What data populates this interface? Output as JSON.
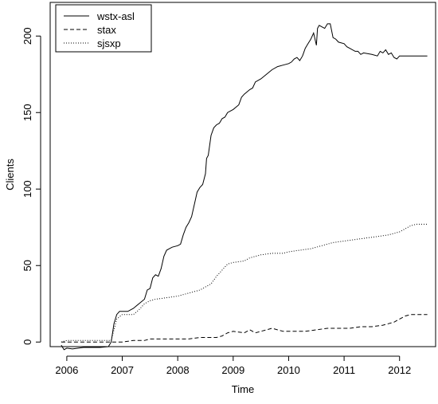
{
  "chart_data": {
    "type": "line",
    "title": "",
    "xlabel": "Time",
    "ylabel": "Clients",
    "xlim": [
      2005.7,
      2012.65
    ],
    "ylim": [
      -3,
      222
    ],
    "x_ticks": [
      2006,
      2007,
      2008,
      2009,
      2010,
      2011,
      2012
    ],
    "y_ticks": [
      0,
      50,
      100,
      150,
      200
    ],
    "grid": false,
    "legend_position": "top-left",
    "series": [
      {
        "name": "wstx-asl",
        "dash": "solid",
        "points": [
          [
            2005.9,
            -2
          ],
          [
            2005.95,
            -5
          ],
          [
            2006.0,
            -4
          ],
          [
            2006.1,
            -4.5
          ],
          [
            2006.3,
            -3.5
          ],
          [
            2006.6,
            -3.5
          ],
          [
            2006.75,
            -3
          ],
          [
            2006.8,
            0
          ],
          [
            2006.85,
            12
          ],
          [
            2006.9,
            18
          ],
          [
            2006.95,
            20
          ],
          [
            2007.1,
            20
          ],
          [
            2007.2,
            22
          ],
          [
            2007.3,
            25
          ],
          [
            2007.4,
            28
          ],
          [
            2007.45,
            34
          ],
          [
            2007.5,
            35
          ],
          [
            2007.55,
            42
          ],
          [
            2007.6,
            44
          ],
          [
            2007.65,
            43
          ],
          [
            2007.7,
            48
          ],
          [
            2007.75,
            56
          ],
          [
            2007.8,
            60
          ],
          [
            2007.85,
            61
          ],
          [
            2007.9,
            62
          ],
          [
            2008.0,
            63
          ],
          [
            2008.05,
            64
          ],
          [
            2008.1,
            70
          ],
          [
            2008.15,
            75
          ],
          [
            2008.2,
            78
          ],
          [
            2008.25,
            82
          ],
          [
            2008.3,
            90
          ],
          [
            2008.35,
            98
          ],
          [
            2008.4,
            101
          ],
          [
            2008.45,
            103
          ],
          [
            2008.5,
            110
          ],
          [
            2008.52,
            120
          ],
          [
            2008.55,
            122
          ],
          [
            2008.6,
            135
          ],
          [
            2008.65,
            140
          ],
          [
            2008.7,
            142
          ],
          [
            2008.75,
            143
          ],
          [
            2008.8,
            146
          ],
          [
            2008.85,
            147
          ],
          [
            2008.9,
            150
          ],
          [
            2008.95,
            151
          ],
          [
            2009.0,
            152
          ],
          [
            2009.1,
            155
          ],
          [
            2009.15,
            160
          ],
          [
            2009.2,
            162
          ],
          [
            2009.3,
            165
          ],
          [
            2009.35,
            166
          ],
          [
            2009.4,
            170
          ],
          [
            2009.5,
            172
          ],
          [
            2009.6,
            175
          ],
          [
            2009.7,
            178
          ],
          [
            2009.8,
            180
          ],
          [
            2009.9,
            181
          ],
          [
            2010.0,
            182
          ],
          [
            2010.05,
            183
          ],
          [
            2010.1,
            185
          ],
          [
            2010.15,
            186
          ],
          [
            2010.2,
            184
          ],
          [
            2010.25,
            187
          ],
          [
            2010.3,
            192
          ],
          [
            2010.35,
            195
          ],
          [
            2010.4,
            198
          ],
          [
            2010.45,
            202
          ],
          [
            2010.5,
            194
          ],
          [
            2010.52,
            205
          ],
          [
            2010.55,
            207
          ],
          [
            2010.6,
            206
          ],
          [
            2010.65,
            205
          ],
          [
            2010.7,
            208
          ],
          [
            2010.75,
            208
          ],
          [
            2010.8,
            199
          ],
          [
            2010.85,
            198
          ],
          [
            2010.9,
            196
          ],
          [
            2011.0,
            195
          ],
          [
            2011.05,
            193
          ],
          [
            2011.1,
            192
          ],
          [
            2011.2,
            190
          ],
          [
            2011.25,
            190
          ],
          [
            2011.3,
            188
          ],
          [
            2011.35,
            189
          ],
          [
            2011.5,
            188
          ],
          [
            2011.6,
            187
          ],
          [
            2011.65,
            190
          ],
          [
            2011.7,
            189
          ],
          [
            2011.75,
            191
          ],
          [
            2011.8,
            188
          ],
          [
            2011.85,
            189
          ],
          [
            2011.9,
            186
          ],
          [
            2011.95,
            185
          ],
          [
            2012.0,
            187
          ],
          [
            2012.1,
            187
          ],
          [
            2012.3,
            187
          ],
          [
            2012.5,
            187
          ]
        ]
      },
      {
        "name": "stax",
        "dash": "dashed",
        "points": [
          [
            2005.9,
            0
          ],
          [
            2006.0,
            0
          ],
          [
            2006.5,
            0
          ],
          [
            2006.8,
            0
          ],
          [
            2006.9,
            0
          ],
          [
            2007.0,
            0
          ],
          [
            2007.2,
            1
          ],
          [
            2007.4,
            1
          ],
          [
            2007.5,
            2
          ],
          [
            2007.8,
            2
          ],
          [
            2008.0,
            2
          ],
          [
            2008.2,
            2
          ],
          [
            2008.4,
            3
          ],
          [
            2008.7,
            3
          ],
          [
            2008.8,
            4
          ],
          [
            2008.9,
            6
          ],
          [
            2009.0,
            7
          ],
          [
            2009.2,
            6
          ],
          [
            2009.3,
            8
          ],
          [
            2009.4,
            6
          ],
          [
            2009.6,
            8
          ],
          [
            2009.7,
            9
          ],
          [
            2009.9,
            7
          ],
          [
            2010.0,
            7
          ],
          [
            2010.2,
            7
          ],
          [
            2010.3,
            7
          ],
          [
            2010.5,
            8
          ],
          [
            2010.7,
            9
          ],
          [
            2010.9,
            9
          ],
          [
            2011.1,
            9
          ],
          [
            2011.3,
            10
          ],
          [
            2011.5,
            10
          ],
          [
            2011.7,
            11
          ],
          [
            2011.8,
            12
          ],
          [
            2011.9,
            13
          ],
          [
            2012.0,
            15
          ],
          [
            2012.1,
            17
          ],
          [
            2012.2,
            18
          ],
          [
            2012.5,
            18
          ]
        ]
      },
      {
        "name": "sjsxp",
        "dash": "dotted",
        "points": [
          [
            2005.9,
            0
          ],
          [
            2006.0,
            1
          ],
          [
            2006.5,
            1
          ],
          [
            2006.8,
            1
          ],
          [
            2006.85,
            8
          ],
          [
            2006.9,
            15
          ],
          [
            2007.0,
            18
          ],
          [
            2007.2,
            18
          ],
          [
            2007.3,
            21
          ],
          [
            2007.4,
            25
          ],
          [
            2007.5,
            27
          ],
          [
            2007.6,
            28
          ],
          [
            2007.8,
            29
          ],
          [
            2008.0,
            30
          ],
          [
            2008.1,
            31
          ],
          [
            2008.3,
            33
          ],
          [
            2008.4,
            34
          ],
          [
            2008.5,
            36
          ],
          [
            2008.6,
            38
          ],
          [
            2008.7,
            43
          ],
          [
            2008.8,
            47
          ],
          [
            2008.9,
            51
          ],
          [
            2009.0,
            52
          ],
          [
            2009.2,
            53
          ],
          [
            2009.3,
            55
          ],
          [
            2009.5,
            57
          ],
          [
            2009.7,
            58
          ],
          [
            2009.9,
            58
          ],
          [
            2010.0,
            59
          ],
          [
            2010.2,
            60
          ],
          [
            2010.4,
            61
          ],
          [
            2010.6,
            63
          ],
          [
            2010.8,
            65
          ],
          [
            2011.0,
            66
          ],
          [
            2011.2,
            67
          ],
          [
            2011.4,
            68
          ],
          [
            2011.6,
            69
          ],
          [
            2011.8,
            70
          ],
          [
            2012.0,
            72
          ],
          [
            2012.1,
            74
          ],
          [
            2012.2,
            76
          ],
          [
            2012.3,
            77
          ],
          [
            2012.5,
            77
          ]
        ]
      }
    ]
  }
}
